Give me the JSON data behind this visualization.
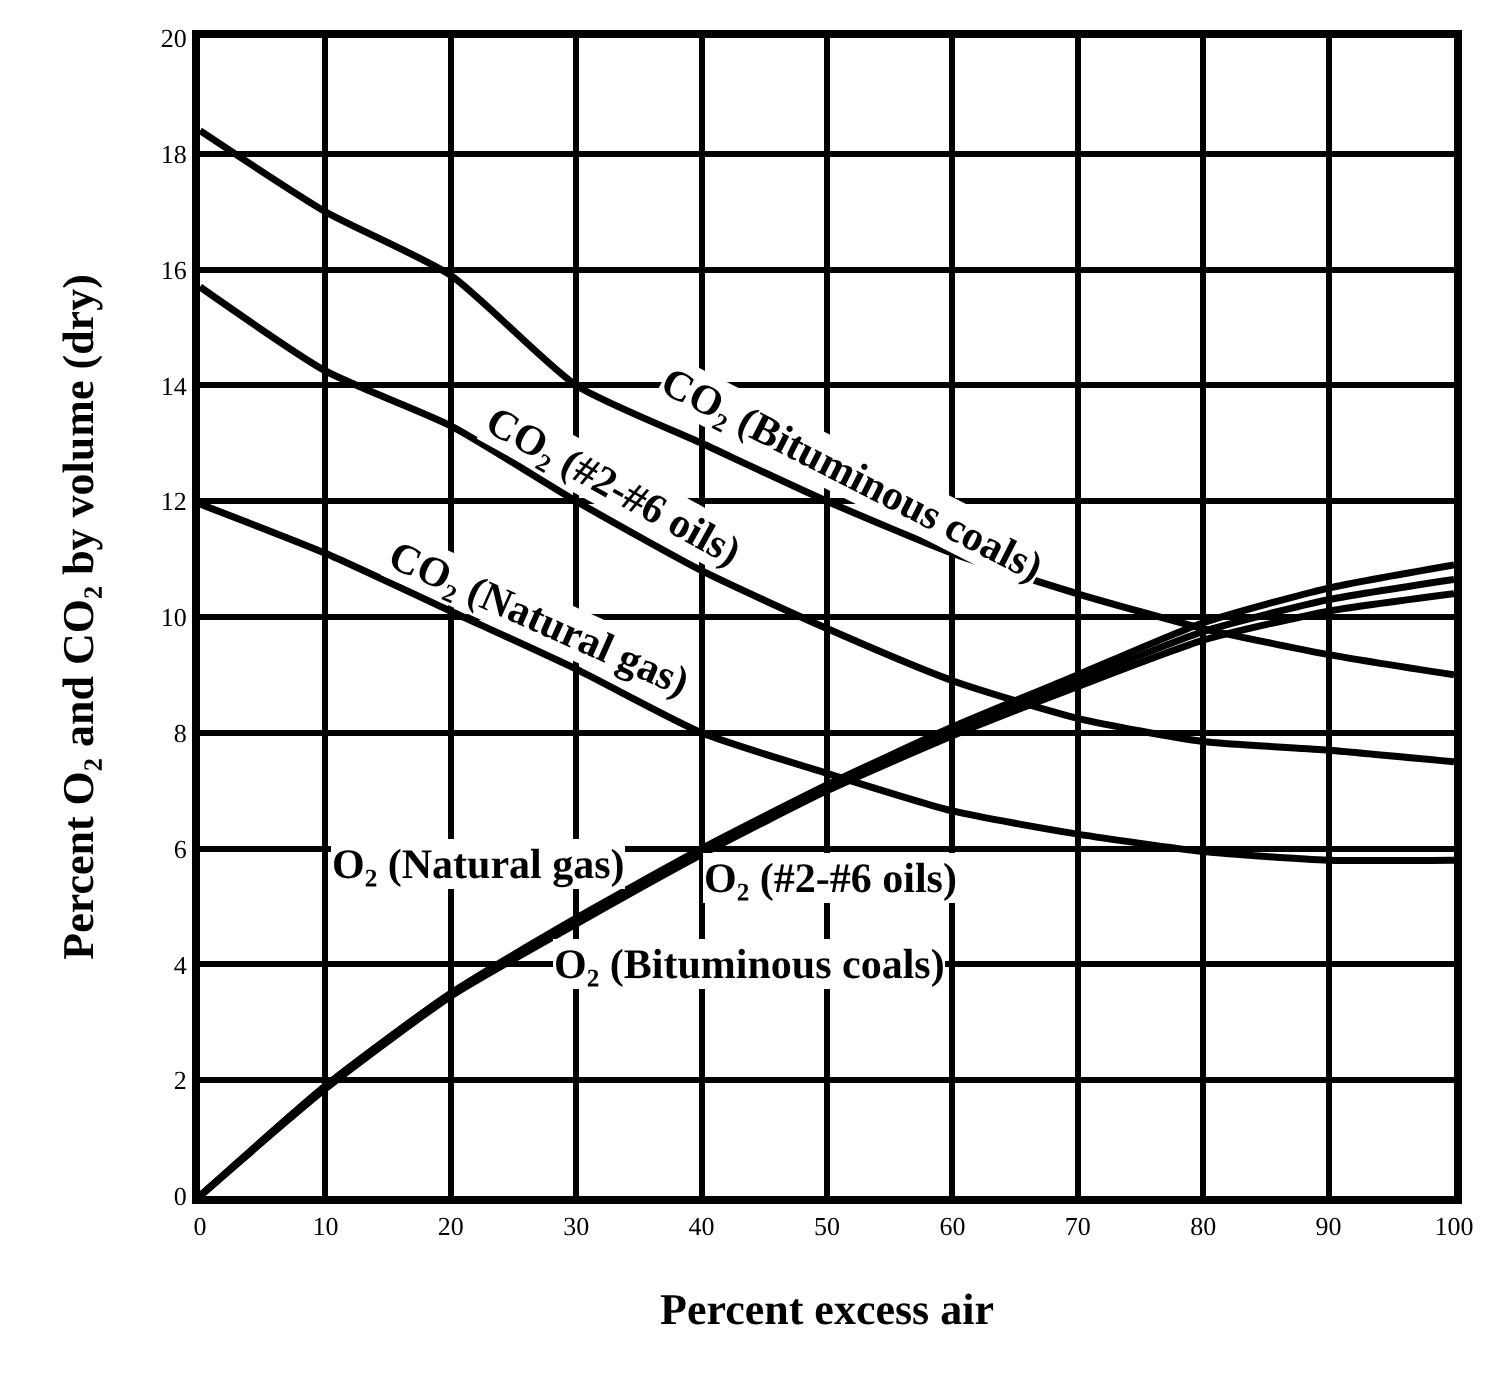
{
  "chart_data": {
    "type": "line",
    "xlabel": "Percent excess air",
    "ylabel": "Percent O₂ and CO₂ by volume (dry)",
    "x": [
      0,
      10,
      20,
      30,
      40,
      50,
      60,
      70,
      80,
      90,
      100
    ],
    "series": [
      {
        "name": "CO₂ (Bituminous coals)",
        "color": "#000000",
        "values": [
          18.4,
          17.0,
          15.9,
          14.0,
          13.0,
          12.0,
          11.1,
          10.4,
          9.8,
          9.35,
          9.0
        ]
      },
      {
        "name": "CO₂ (#2-#6 oils)",
        "color": "#000000",
        "values": [
          15.7,
          14.25,
          13.3,
          12.0,
          10.8,
          9.8,
          8.9,
          8.25,
          7.85,
          7.7,
          7.5
        ]
      },
      {
        "name": "CO₂ (Natural gas)",
        "color": "#000000",
        "values": [
          11.95,
          11.1,
          10.1,
          9.1,
          8.0,
          7.3,
          6.65,
          6.25,
          5.95,
          5.8,
          5.8
        ]
      },
      {
        "name": "O₂ (Natural gas)",
        "color": "#000000",
        "values": [
          0,
          1.9,
          3.5,
          4.8,
          6.0,
          7.1,
          8.1,
          9.0,
          9.9,
          10.5,
          10.9
        ]
      },
      {
        "name": "O₂ (#2-#6 oils)",
        "color": "#000000",
        "values": [
          0,
          1.9,
          3.5,
          4.75,
          5.95,
          7.05,
          8.0,
          8.9,
          9.75,
          10.3,
          10.65
        ]
      },
      {
        "name": "O₂ (Bituminous coals)",
        "color": "#000000",
        "values": [
          0,
          1.85,
          3.45,
          4.7,
          5.9,
          7.0,
          7.95,
          8.8,
          9.6,
          10.1,
          10.4
        ]
      }
    ],
    "xlim": [
      0,
      100
    ],
    "ylim": [
      0,
      20
    ],
    "xticks": [
      0,
      10,
      20,
      30,
      40,
      50,
      60,
      70,
      80,
      90,
      100
    ],
    "yticks": [
      0,
      2,
      4,
      6,
      8,
      10,
      12,
      14,
      16,
      18,
      20
    ],
    "grid": true,
    "legend": false,
    "marker": "none",
    "line_style": "solid"
  }
}
